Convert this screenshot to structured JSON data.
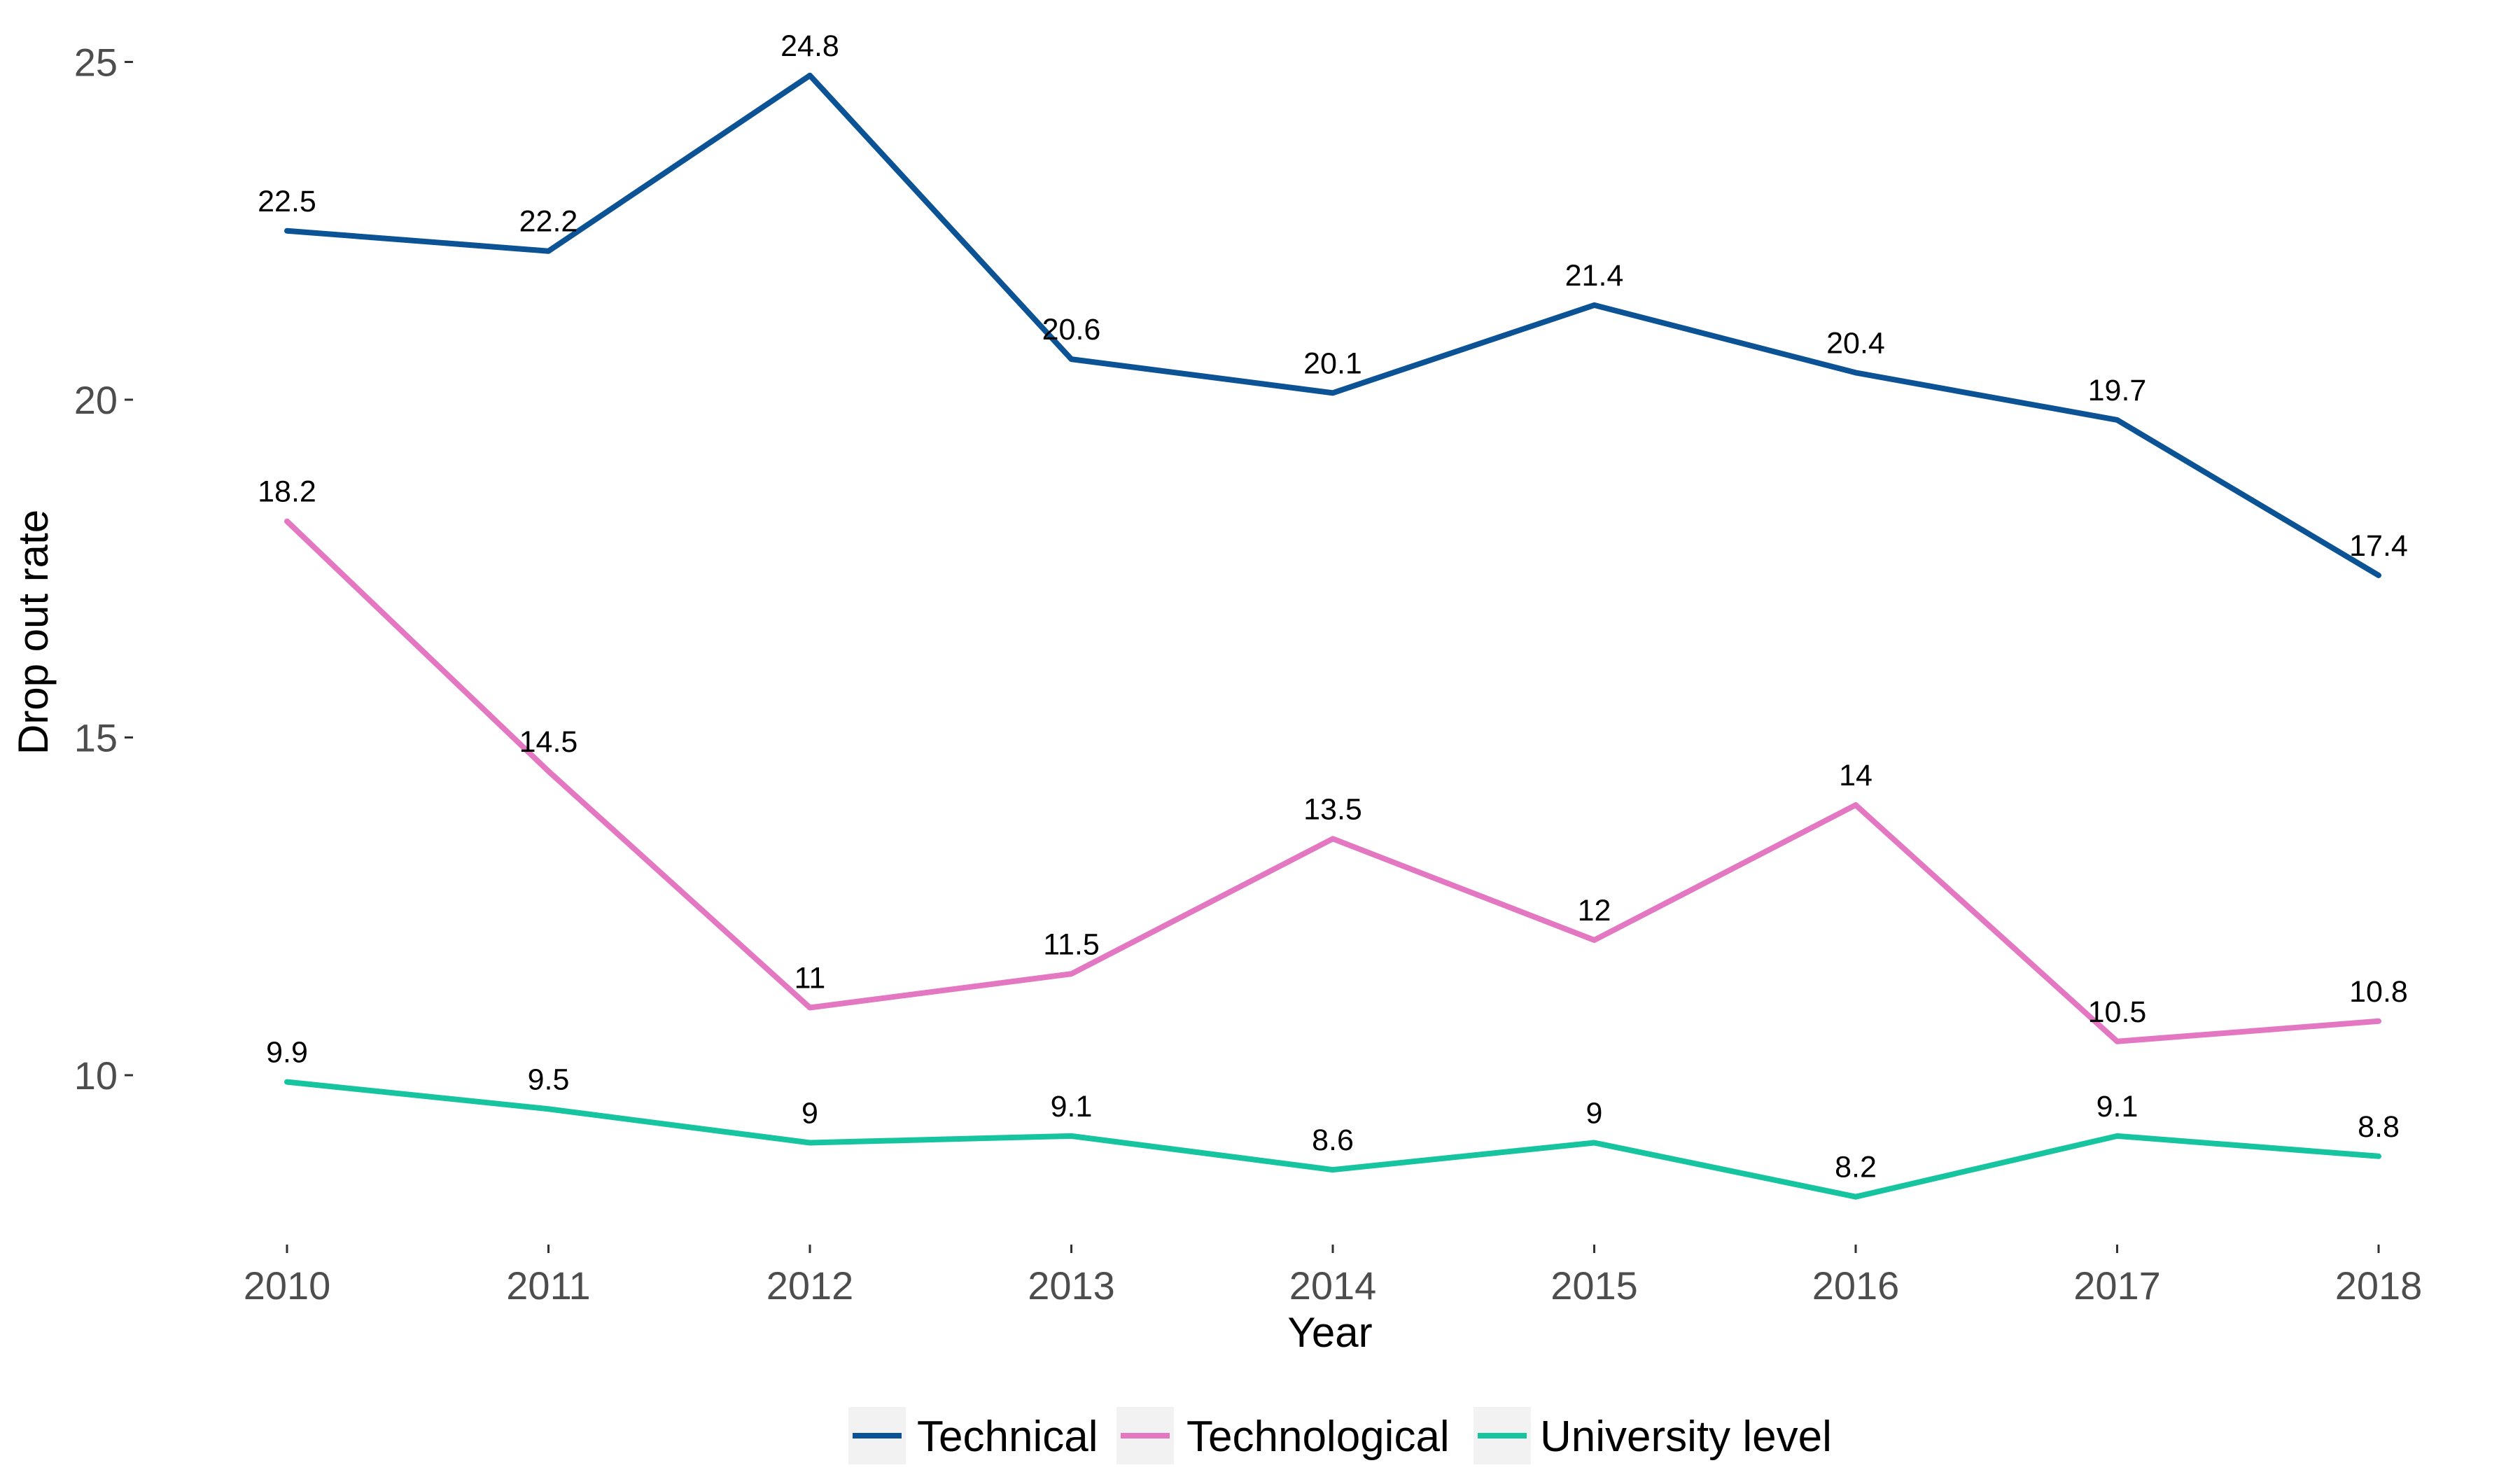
{
  "chart_data": {
    "type": "line",
    "xlabel": "Year",
    "ylabel": "Drop out rate",
    "x": [
      "2010",
      "2011",
      "2012",
      "2013",
      "2014",
      "2015",
      "2016",
      "2017",
      "2018"
    ],
    "y_ticks": [
      10,
      15,
      20,
      25
    ],
    "ylim": [
      7.5,
      25.5
    ],
    "grid": false,
    "legend_position": "bottom",
    "series": [
      {
        "name": "Technical",
        "color": "#0b5394",
        "values": [
          22.5,
          22.2,
          24.8,
          20.6,
          20.1,
          21.4,
          20.4,
          19.7,
          17.4
        ],
        "labels": [
          "22.5",
          "22.2",
          "24.8",
          "20.6",
          "20.1",
          "21.4",
          "20.4",
          "19.7",
          "17.4"
        ]
      },
      {
        "name": "Technological",
        "color": "#e377c2",
        "values": [
          18.2,
          14.5,
          11,
          11.5,
          13.5,
          12,
          14,
          10.5,
          10.8
        ],
        "labels": [
          "18.2",
          "14.5",
          "11",
          "11.5",
          "13.5",
          "12",
          "14",
          "10.5",
          "10.8"
        ]
      },
      {
        "name": "University level",
        "color": "#17c4a0",
        "values": [
          9.9,
          9.5,
          9,
          9.1,
          8.6,
          9,
          8.2,
          9.1,
          8.8
        ],
        "labels": [
          "9.9",
          "9.5",
          "9",
          "9.1",
          "8.6",
          "9",
          "8.2",
          "9.1",
          "8.8"
        ]
      }
    ]
  }
}
